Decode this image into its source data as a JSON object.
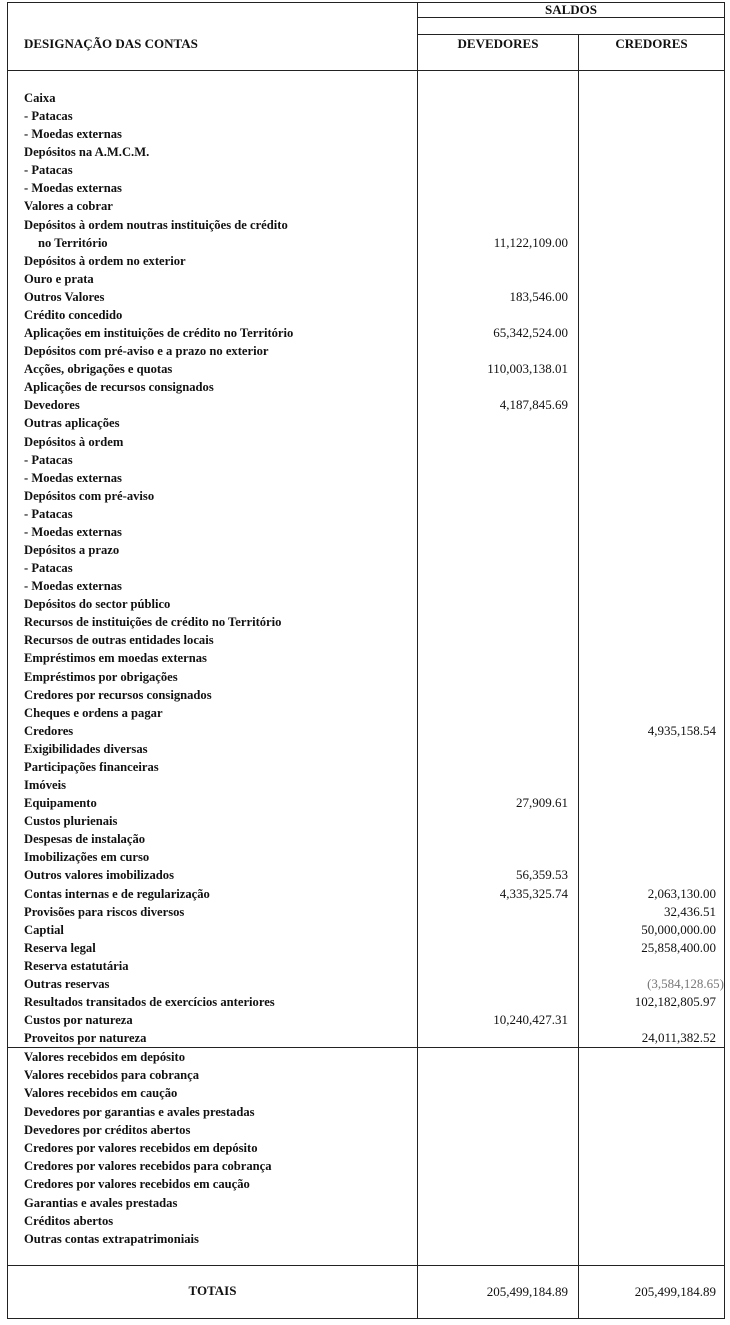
{
  "header": {
    "designation": "DESIGNAÇÃO DAS CONTAS",
    "saldos": "SALDOS",
    "devedores": "DEVEDORES",
    "credores": "CREDORES"
  },
  "accounts": [
    {
      "label": "Caixa"
    },
    {
      "label": "- Patacas"
    },
    {
      "label": "- Moedas externas"
    },
    {
      "label": "Depósitos na A.M.C.M."
    },
    {
      "label": "- Patacas"
    },
    {
      "label": "- Moedas externas"
    },
    {
      "label": "Valores a cobrar"
    },
    {
      "label": "Depósitos à ordem noutras instituições de crédito"
    },
    {
      "label": "no Território",
      "indent": true,
      "devedores": "11,122,109.00"
    },
    {
      "label": "Depósitos à ordem no exterior"
    },
    {
      "label": "Ouro e prata"
    },
    {
      "label": "Outros Valores",
      "devedores": "183,546.00"
    },
    {
      "label": "Crédito concedido"
    },
    {
      "label": "Aplicações em instituições de crédito no Território",
      "devedores": "65,342,524.00"
    },
    {
      "label": "Depósitos com pré-aviso e a prazo no exterior"
    },
    {
      "label": "Acções, obrigações e quotas",
      "devedores": "110,003,138.01"
    },
    {
      "label": "Aplicações de recursos consignados"
    },
    {
      "label": "Devedores",
      "devedores": "4,187,845.69"
    },
    {
      "label": "Outras aplicações"
    },
    {
      "label": "Depósitos à ordem"
    },
    {
      "label": "- Patacas"
    },
    {
      "label": "- Moedas externas"
    },
    {
      "label": "Depósitos com pré-aviso"
    },
    {
      "label": "- Patacas"
    },
    {
      "label": "- Moedas externas"
    },
    {
      "label": "Depósitos a prazo"
    },
    {
      "label": "- Patacas"
    },
    {
      "label": "- Moedas externas"
    },
    {
      "label": "Depósitos do sector público"
    },
    {
      "label": "Recursos de instituições de crédito no Território"
    },
    {
      "label": "Recursos de outras entidades locais"
    },
    {
      "label": "Empréstimos em moedas externas"
    },
    {
      "label": "Empréstimos por obrigações"
    },
    {
      "label": "Credores por recursos consignados"
    },
    {
      "label": "Cheques e ordens a pagar"
    },
    {
      "label": "Credores",
      "credores": "4,935,158.54"
    },
    {
      "label": "Exigibilidades diversas"
    },
    {
      "label": "Participações financeiras"
    },
    {
      "label": "Imóveis"
    },
    {
      "label": "Equipamento",
      "devedores": "27,909.61"
    },
    {
      "label": "Custos plurienais"
    },
    {
      "label": "Despesas de instalação"
    },
    {
      "label": "Imobilizações em  curso"
    },
    {
      "label": "Outros valores imobilizados",
      "devedores": "56,359.53"
    },
    {
      "label": "Contas internas e de regularização",
      "devedores": "4,335,325.74",
      "credores": "2,063,130.00"
    },
    {
      "label": "Provisões para riscos diversos",
      "credores": "32,436.51"
    },
    {
      "label": "Captial",
      "credores": "50,000,000.00"
    },
    {
      "label": "Reserva legal",
      "credores": "25,858,400.00"
    },
    {
      "label": "Reserva estatutária"
    },
    {
      "label": "Outras reservas",
      "credores": "(3,584,128.65)",
      "negative": true
    },
    {
      "label": "Resultados transitados de exercícios anteriores",
      "credores": "102,182,805.97"
    },
    {
      "label": "Custos por natureza",
      "devedores": "10,240,427.31"
    },
    {
      "label": "Proveitos por natureza",
      "credores": "24,011,382.52"
    }
  ],
  "off_balance": [
    {
      "label": "Valores recebidos em depósito"
    },
    {
      "label": "Valores recebidos para cobrança"
    },
    {
      "label": "Valores recebidos em caução"
    },
    {
      "label": "Devedores por garantias e avales prestadas"
    },
    {
      "label": "Devedores por créditos abertos"
    },
    {
      "label": "Credores por valores recebidos em depósito"
    },
    {
      "label": "Credores por valores recebidos para cobrança"
    },
    {
      "label": "Credores por valores recebidos em caução"
    },
    {
      "label": "Garantias e avales prestadas"
    },
    {
      "label": "Créditos abertos"
    },
    {
      "label": "Outras contas extrapatrimoniais"
    }
  ],
  "totals": {
    "label": "TOTAIS",
    "devedores": "205,499,184.89",
    "credores": "205,499,184.89"
  }
}
